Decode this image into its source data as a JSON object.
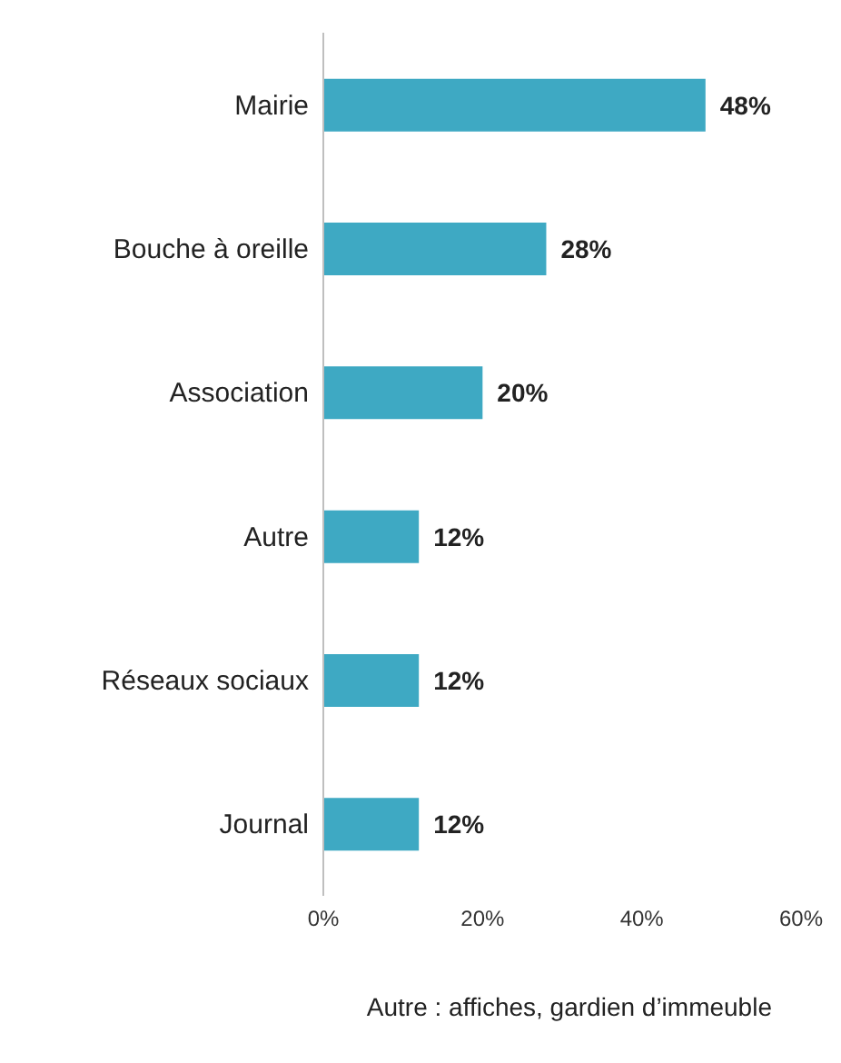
{
  "chart_data": {
    "type": "bar",
    "orientation": "horizontal",
    "categories": [
      "Mairie",
      "Bouche à oreille",
      "Association",
      "Autre",
      "Réseaux sociaux",
      "Journal"
    ],
    "values": [
      48,
      28,
      20,
      12,
      12,
      12
    ],
    "value_labels": [
      "48%",
      "28%",
      "20%",
      "12%",
      "12%",
      "12%"
    ],
    "color": "#3ea9c3",
    "xlim": [
      0,
      60
    ],
    "xticks": [
      {
        "value": 0,
        "label": "0%"
      },
      {
        "value": 20,
        "label": "20%"
      },
      {
        "value": 40,
        "label": "40%"
      },
      {
        "value": 60,
        "label": "60%"
      }
    ],
    "grid": false,
    "annotations": [
      "Autre : affiches, gardien d’immeuble"
    ]
  }
}
